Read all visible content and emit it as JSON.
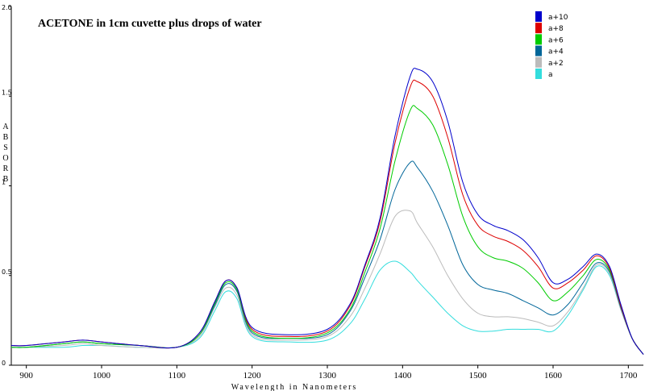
{
  "chart_data": {
    "type": "line",
    "title": "ACETONE in 1cm cuvette plus drops of water",
    "xlabel": "Wavelength in Nanometers",
    "ylabel": "ABSORB",
    "xlim": [
      880,
      1720
    ],
    "ylim": [
      0,
      2.0
    ],
    "x_ticks": [
      900,
      1000,
      1100,
      1200,
      1300,
      1400,
      1500,
      1600,
      1700
    ],
    "y_ticks": [
      {
        "value": 0,
        "label": "0"
      },
      {
        "value": 0.5,
        "label": "0.5"
      },
      {
        "value": 1.0,
        "label": "1"
      },
      {
        "value": 1.5,
        "label": "1.5"
      },
      {
        "value": 2.0,
        "label": "2.0"
      }
    ],
    "legend_position": "top-right",
    "grid": false,
    "x": [
      880,
      900,
      950,
      975,
      1000,
      1050,
      1100,
      1130,
      1150,
      1165,
      1180,
      1200,
      1250,
      1300,
      1330,
      1350,
      1370,
      1390,
      1410,
      1420,
      1440,
      1460,
      1480,
      1500,
      1520,
      1540,
      1560,
      1580,
      1600,
      1620,
      1640,
      1658,
      1675,
      1690,
      1705,
      1720
    ],
    "series": [
      {
        "name": "a+10",
        "color": "#0000cc",
        "values": [
          0.11,
          0.11,
          0.13,
          0.14,
          0.13,
          0.11,
          0.1,
          0.18,
          0.35,
          0.47,
          0.43,
          0.21,
          0.17,
          0.2,
          0.34,
          0.56,
          0.82,
          1.28,
          1.61,
          1.65,
          1.58,
          1.36,
          1.02,
          0.84,
          0.78,
          0.75,
          0.7,
          0.6,
          0.46,
          0.48,
          0.55,
          0.62,
          0.55,
          0.34,
          0.15,
          0.06
        ]
      },
      {
        "name": "a+8",
        "color": "#dd0000",
        "values": [
          0.11,
          0.11,
          0.13,
          0.14,
          0.13,
          0.11,
          0.1,
          0.18,
          0.35,
          0.47,
          0.43,
          0.2,
          0.16,
          0.19,
          0.33,
          0.55,
          0.8,
          1.24,
          1.55,
          1.58,
          1.5,
          1.27,
          0.95,
          0.78,
          0.72,
          0.69,
          0.64,
          0.55,
          0.43,
          0.46,
          0.53,
          0.61,
          0.54,
          0.33,
          0.15,
          0.06
        ]
      },
      {
        "name": "a+6",
        "color": "#00cc00",
        "values": [
          0.1,
          0.1,
          0.12,
          0.13,
          0.12,
          0.11,
          0.1,
          0.17,
          0.34,
          0.46,
          0.42,
          0.19,
          0.15,
          0.18,
          0.31,
          0.52,
          0.76,
          1.14,
          1.42,
          1.43,
          1.34,
          1.12,
          0.83,
          0.66,
          0.6,
          0.58,
          0.54,
          0.46,
          0.36,
          0.41,
          0.5,
          0.59,
          0.53,
          0.33,
          0.15,
          0.06
        ]
      },
      {
        "name": "a+4",
        "color": "#006699",
        "values": [
          0.1,
          0.1,
          0.12,
          0.13,
          0.12,
          0.11,
          0.1,
          0.17,
          0.33,
          0.45,
          0.41,
          0.18,
          0.15,
          0.17,
          0.3,
          0.49,
          0.7,
          0.98,
          1.13,
          1.1,
          0.97,
          0.78,
          0.56,
          0.45,
          0.42,
          0.4,
          0.36,
          0.32,
          0.28,
          0.34,
          0.46,
          0.57,
          0.52,
          0.32,
          0.15,
          0.06
        ]
      },
      {
        "name": "a+2",
        "color": "#bbbbbb",
        "values": [
          0.1,
          0.1,
          0.11,
          0.12,
          0.11,
          0.1,
          0.1,
          0.16,
          0.32,
          0.43,
          0.39,
          0.17,
          0.14,
          0.16,
          0.27,
          0.43,
          0.62,
          0.83,
          0.86,
          0.79,
          0.66,
          0.5,
          0.37,
          0.29,
          0.27,
          0.27,
          0.26,
          0.24,
          0.22,
          0.3,
          0.43,
          0.56,
          0.51,
          0.31,
          0.15,
          0.06
        ]
      },
      {
        "name": "a",
        "color": "#33dddd",
        "values": [
          0.1,
          0.1,
          0.1,
          0.11,
          0.11,
          0.1,
          0.1,
          0.15,
          0.3,
          0.41,
          0.37,
          0.16,
          0.13,
          0.14,
          0.23,
          0.37,
          0.53,
          0.58,
          0.52,
          0.47,
          0.38,
          0.29,
          0.22,
          0.19,
          0.19,
          0.2,
          0.2,
          0.2,
          0.19,
          0.28,
          0.42,
          0.55,
          0.5,
          0.31,
          0.15,
          0.06
        ]
      }
    ]
  }
}
